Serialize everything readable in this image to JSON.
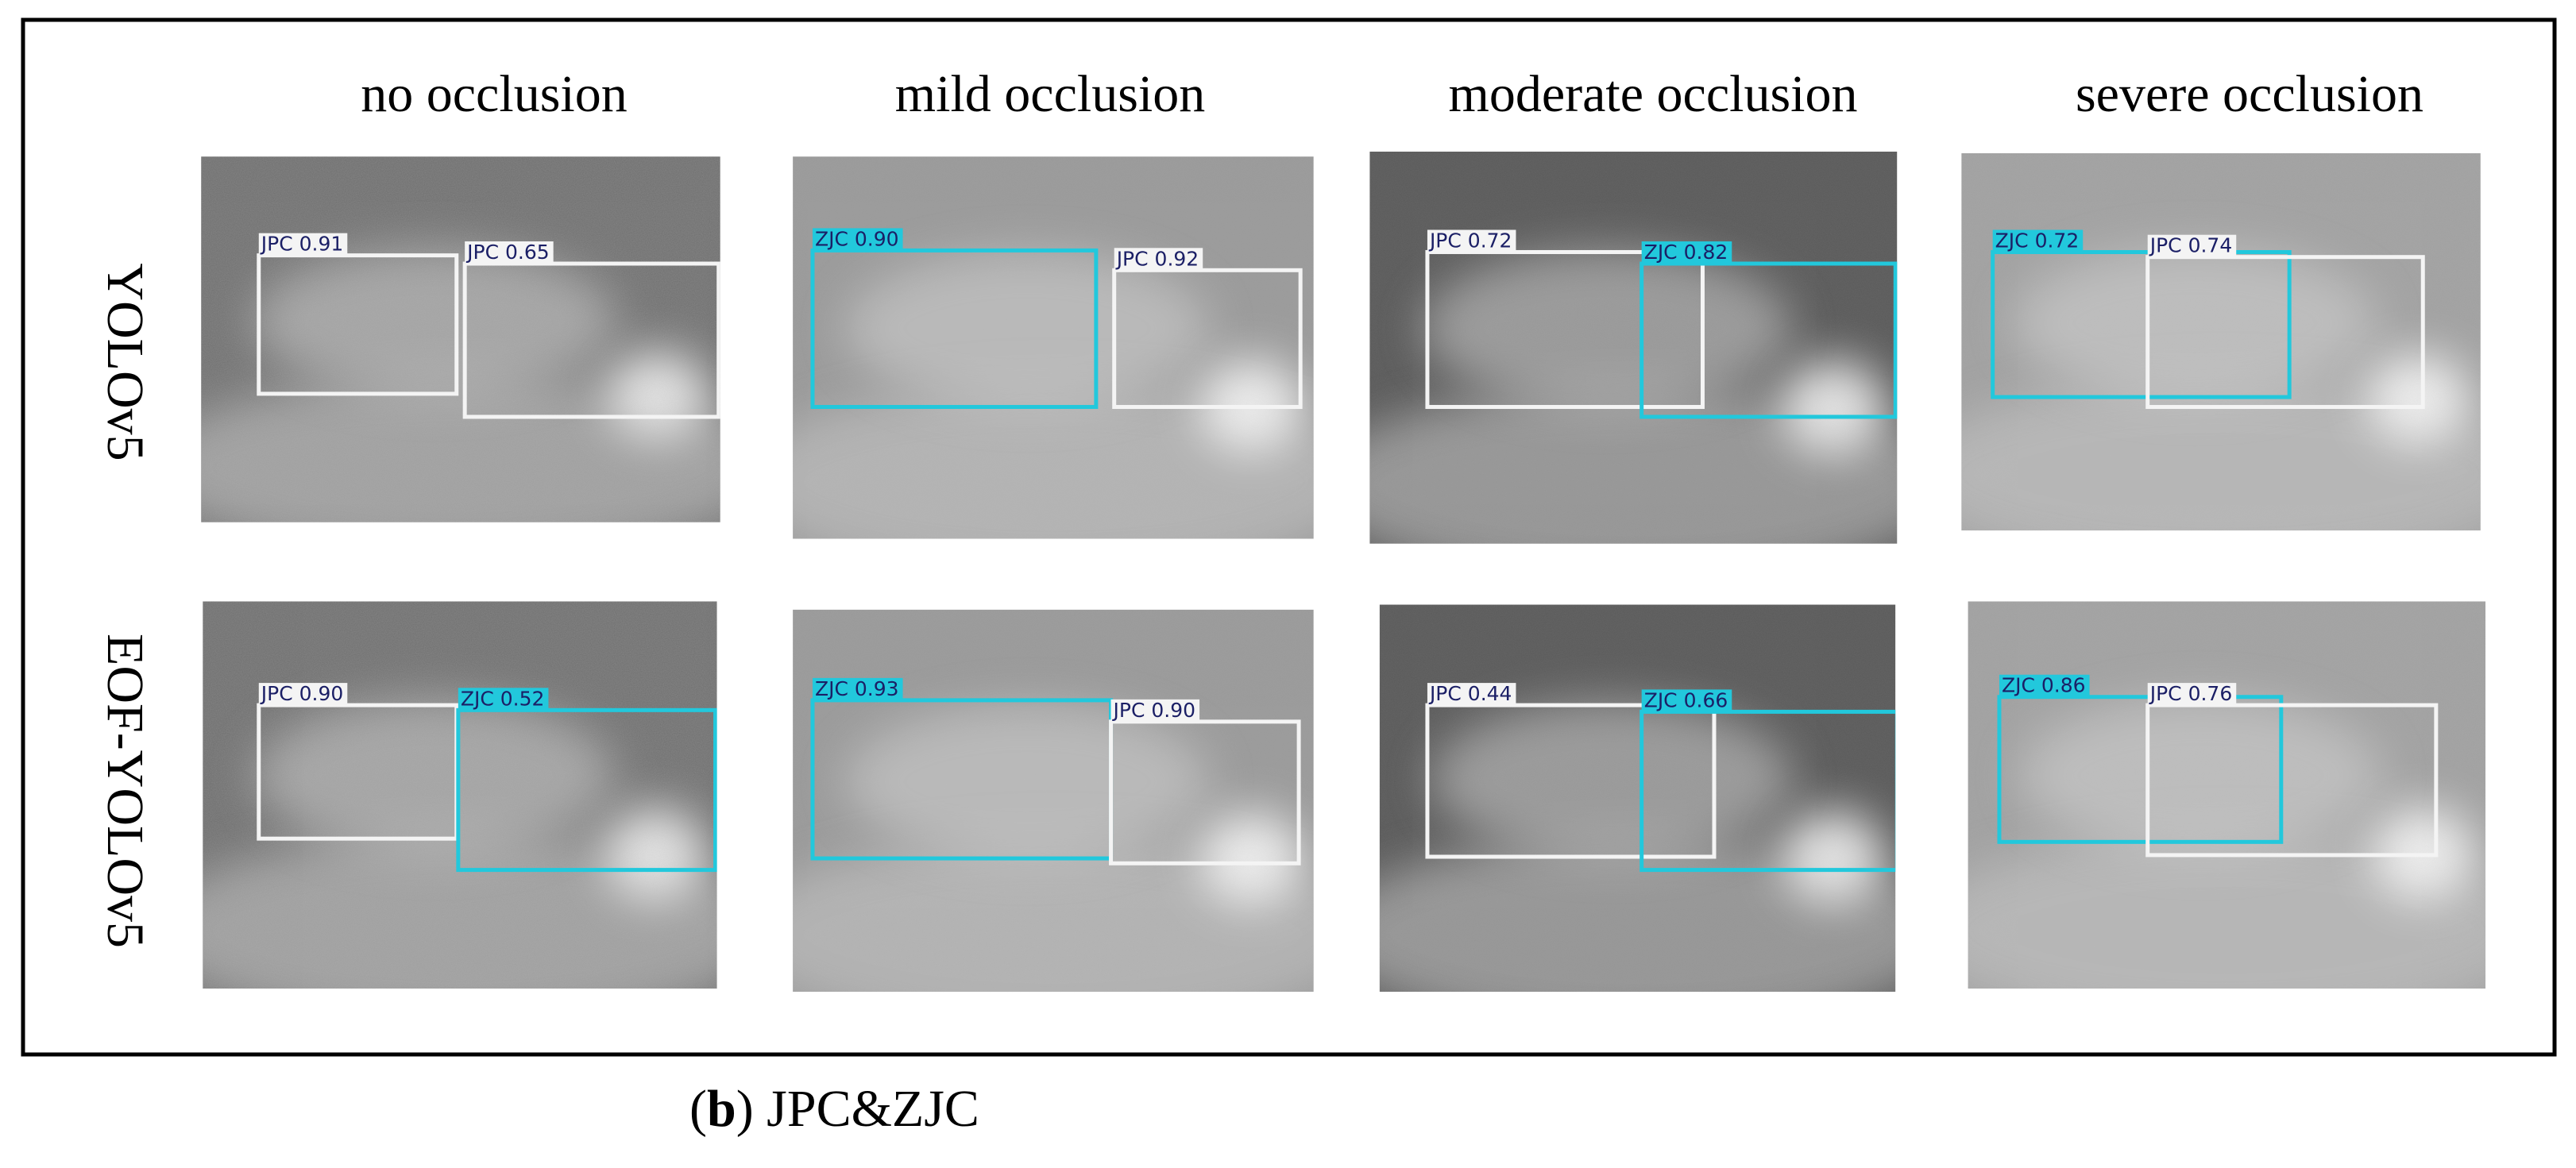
{
  "figure": {
    "columns": [
      "no occlusion",
      "mild occlusion",
      "moderate occlusion",
      "severe occlusion"
    ],
    "rows": [
      {
        "label": "YOLOv5",
        "panels": [
          {
            "detections": [
              {
                "label": "JPC 0.91",
                "color": "#f4f4f4"
              },
              {
                "label": "JPC 0.65",
                "color": "#f4f4f4"
              }
            ]
          },
          {
            "detections": [
              {
                "label": "ZJC 0.90",
                "color": "#22c8dc"
              },
              {
                "label": "JPC 0.92",
                "color": "#f4f4f4"
              }
            ]
          },
          {
            "detections": [
              {
                "label": "JPC 0.72",
                "color": "#f4f4f4"
              },
              {
                "label": "ZJC 0.82",
                "color": "#22c8dc"
              }
            ]
          },
          {
            "detections": [
              {
                "label": "ZJC 0.72",
                "color": "#22c8dc"
              },
              {
                "label": "JPC 0.74",
                "color": "#f4f4f4"
              }
            ]
          }
        ]
      },
      {
        "label": "EOF-YOLOv5",
        "panels": [
          {
            "detections": [
              {
                "label": "JPC 0.90",
                "color": "#f4f4f4"
              },
              {
                "label": "ZJC 0.52",
                "color": "#22c8dc"
              }
            ]
          },
          {
            "detections": [
              {
                "label": "ZJC 0.93",
                "color": "#22c8dc"
              },
              {
                "label": "JPC 0.90",
                "color": "#f4f4f4"
              }
            ]
          },
          {
            "detections": [
              {
                "label": "JPC 0.44",
                "color": "#f4f4f4"
              },
              {
                "label": "ZJC 0.66",
                "color": "#22c8dc"
              }
            ]
          },
          {
            "detections": [
              {
                "label": "ZJC 0.86",
                "color": "#22c8dc"
              },
              {
                "label": "JPC 0.76",
                "color": "#f4f4f4"
              }
            ]
          }
        ]
      }
    ],
    "caption": [
      "(",
      "b",
      ") JPC&ZJC"
    ]
  }
}
